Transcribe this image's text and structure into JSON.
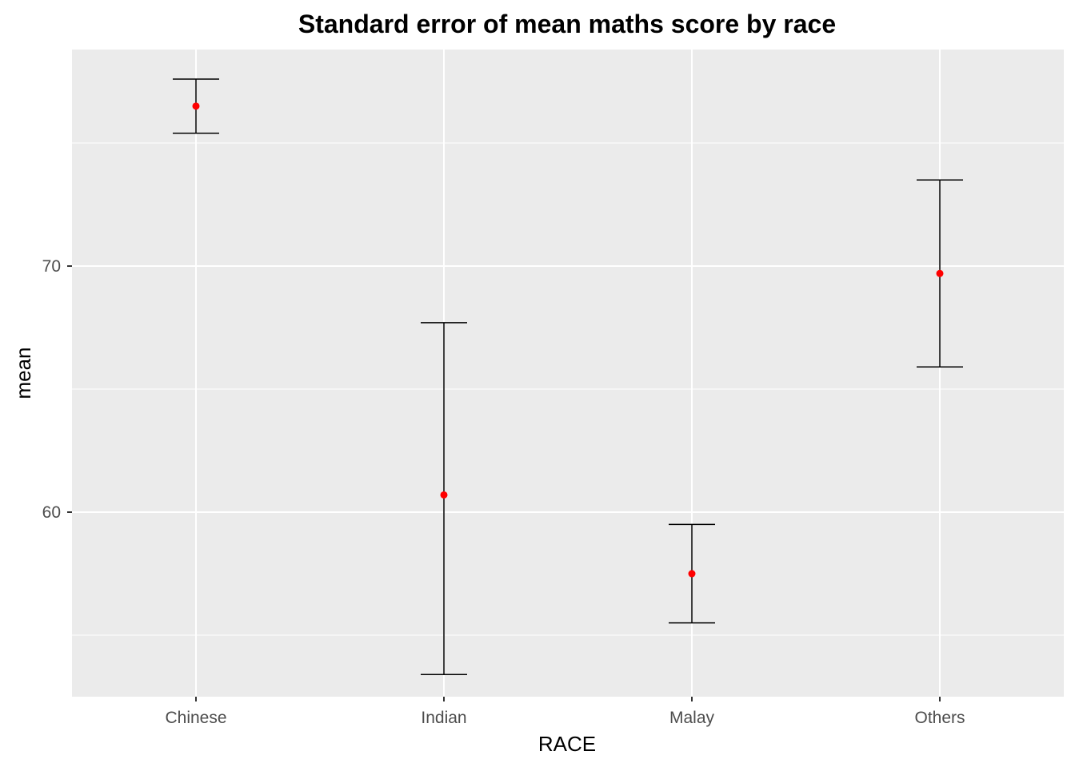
{
  "chart_data": {
    "type": "errorbar",
    "title": "Standard error of mean maths score by race",
    "xlabel": "RACE",
    "ylabel": "mean",
    "categories": [
      "Chinese",
      "Indian",
      "Malay",
      "Others"
    ],
    "series": [
      {
        "mean": [
          76.5,
          60.7,
          57.5,
          69.7
        ],
        "lower": [
          75.4,
          53.4,
          55.5,
          65.9
        ],
        "upper": [
          77.6,
          67.7,
          59.5,
          73.5
        ]
      }
    ],
    "y_ticks": [
      60,
      70
    ],
    "ylim": [
      52.5,
      78.8
    ],
    "grid": true,
    "colors": {
      "panel_background": "#ebebeb",
      "gridline": "#ffffff",
      "point": "#ff0000",
      "errorbar": "#000000"
    }
  }
}
